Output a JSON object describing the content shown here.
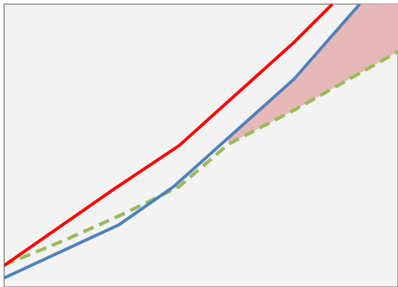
{
  "chart_data": {
    "type": "line",
    "title": "",
    "xlabel": "",
    "ylabel": "",
    "grid": false,
    "legend": "none",
    "xlim": [
      0,
      7.2
    ],
    "ylim": [
      0,
      100
    ],
    "series": [
      {
        "key": "red",
        "color": "#ff0000",
        "dashed": false,
        "points": [
          [
            0,
            7.6
          ],
          [
            2,
            34.5
          ],
          [
            3.2,
            50.0
          ],
          [
            5.3,
            86.5
          ],
          [
            6.0,
            100
          ]
        ]
      },
      {
        "key": "blue",
        "color": "#4f81bd",
        "dashed": false,
        "points": [
          [
            0,
            3.2
          ],
          [
            2.1,
            22.0
          ],
          [
            3.1,
            35.5
          ],
          [
            5.3,
            73.5
          ],
          [
            6.5,
            100
          ]
        ]
      },
      {
        "key": "green",
        "color": "#9bbb59",
        "dashed": true,
        "points": [
          [
            0,
            7.8
          ],
          [
            1.1,
            16.5
          ],
          [
            2.2,
            26.0
          ],
          [
            3.2,
            35.5
          ],
          [
            4.1,
            50.5
          ],
          [
            5.3,
            62.5
          ],
          [
            7.2,
            83.2
          ]
        ]
      }
    ],
    "shaded_region": {
      "color": "#e6b8b7",
      "upper": "blue",
      "lower": "green",
      "x_start": 4.1
    }
  }
}
